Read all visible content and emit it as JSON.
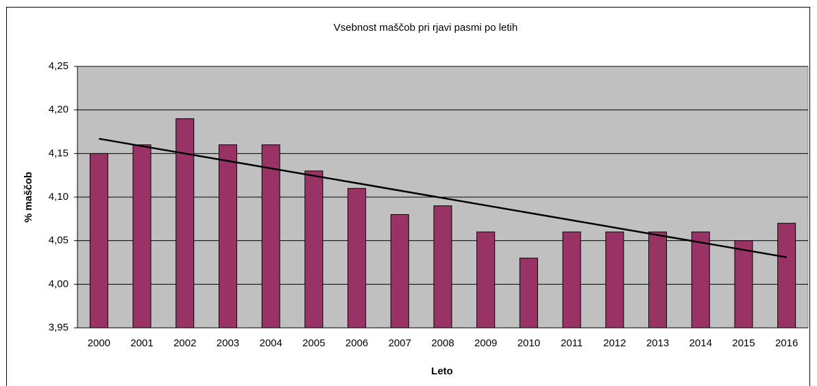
{
  "chart_data": {
    "type": "bar",
    "title": "Vsebnost maščob pri rjavi pasmi po letih",
    "xlabel": "Leto",
    "ylabel": "% maščob",
    "categories": [
      "2000",
      "2001",
      "2002",
      "2003",
      "2004",
      "2005",
      "2006",
      "2007",
      "2008",
      "2009",
      "2010",
      "2011",
      "2012",
      "2013",
      "2014",
      "2015",
      "2016"
    ],
    "values": [
      4.15,
      4.16,
      4.19,
      4.16,
      4.16,
      4.13,
      4.11,
      4.08,
      4.09,
      4.06,
      4.03,
      4.06,
      4.06,
      4.06,
      4.06,
      4.05,
      4.07
    ],
    "color": "#993366",
    "trendline": {
      "values": [
        4.167,
        4.031
      ],
      "color": "#000000"
    },
    "ylim": [
      3.95,
      4.25
    ],
    "yticks": [
      {
        "value": 3.95,
        "label": "3,95"
      },
      {
        "value": 4.0,
        "label": "4,00"
      },
      {
        "value": 4.05,
        "label": "4,05"
      },
      {
        "value": 4.1,
        "label": "4,10"
      },
      {
        "value": 4.15,
        "label": "4,15"
      },
      {
        "value": 4.2,
        "label": "4,20"
      },
      {
        "value": 4.25,
        "label": "4,25"
      }
    ],
    "grid": true
  }
}
